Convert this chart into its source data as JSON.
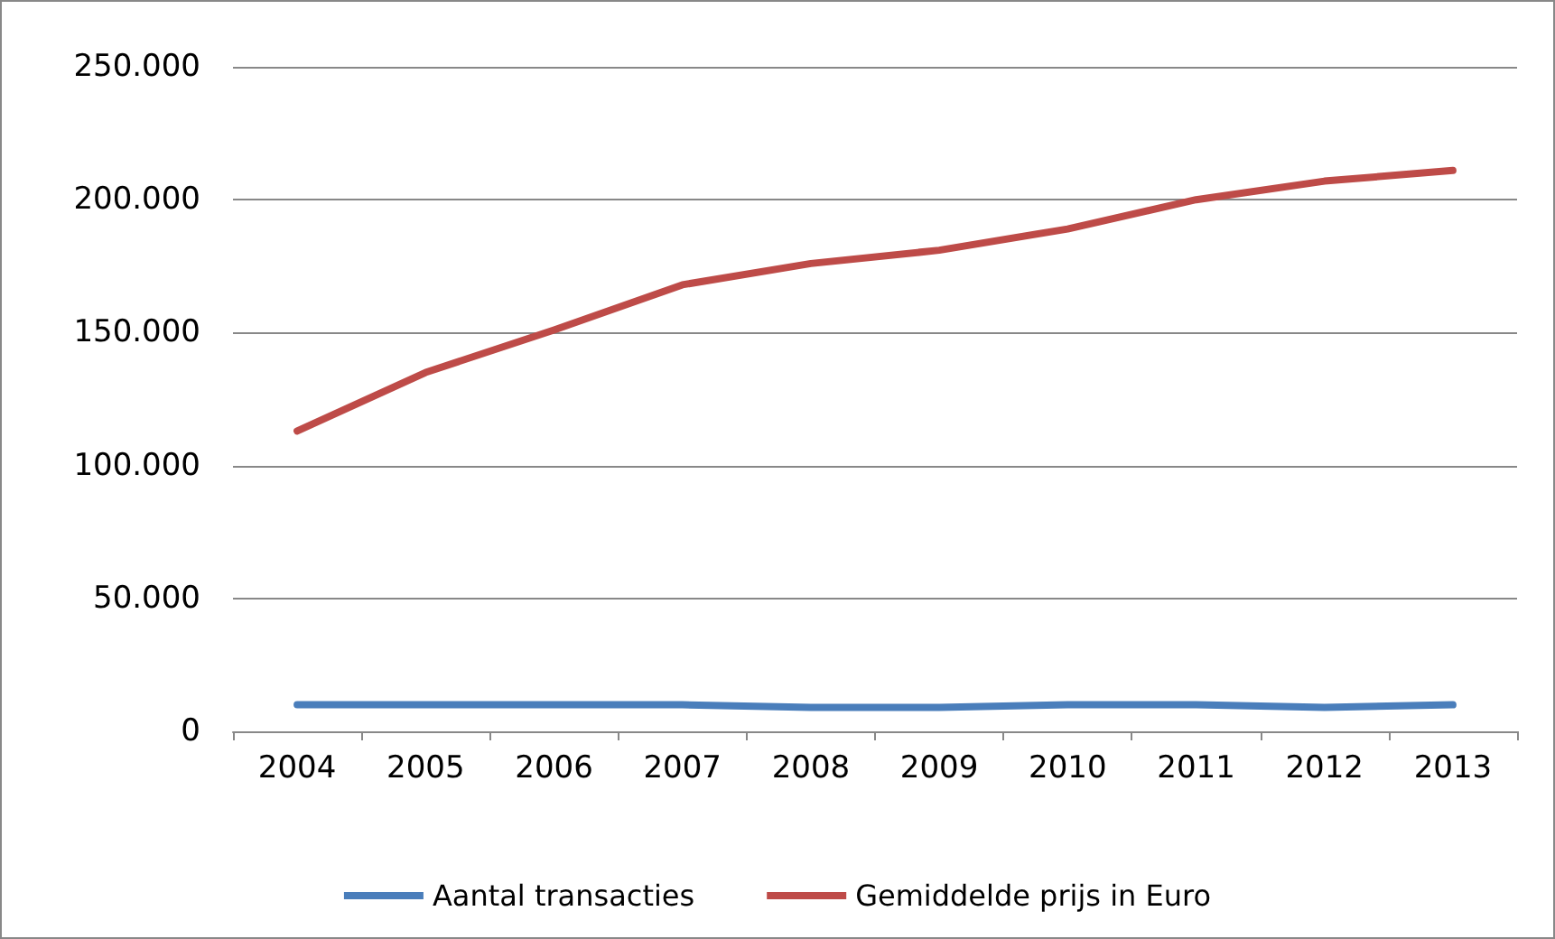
{
  "chart_data": {
    "type": "line",
    "categories": [
      "2004",
      "2005",
      "2006",
      "2007",
      "2008",
      "2009",
      "2010",
      "2011",
      "2012",
      "2013"
    ],
    "series": [
      {
        "name": "Aantal transacties",
        "color": "#4a7ebb",
        "values": [
          10000,
          10000,
          10000,
          10000,
          9000,
          9000,
          10000,
          10000,
          9000,
          10000
        ]
      },
      {
        "name": "Gemiddelde prijs in Euro",
        "color": "#be4b48",
        "values": [
          113000,
          135000,
          151000,
          168000,
          176000,
          181000,
          189000,
          200000,
          207000,
          211000
        ]
      }
    ],
    "ylim": [
      0,
      250000
    ],
    "yticks": [
      {
        "value": 0,
        "label": "0"
      },
      {
        "value": 50000,
        "label": "50.000"
      },
      {
        "value": 100000,
        "label": "100.000"
      },
      {
        "value": 150000,
        "label": "150.000"
      },
      {
        "value": 200000,
        "label": "200.000"
      },
      {
        "value": 250000,
        "label": "250.000"
      }
    ],
    "grid": "y",
    "legend": "bottom",
    "marker": "none",
    "line_style": "solid"
  }
}
